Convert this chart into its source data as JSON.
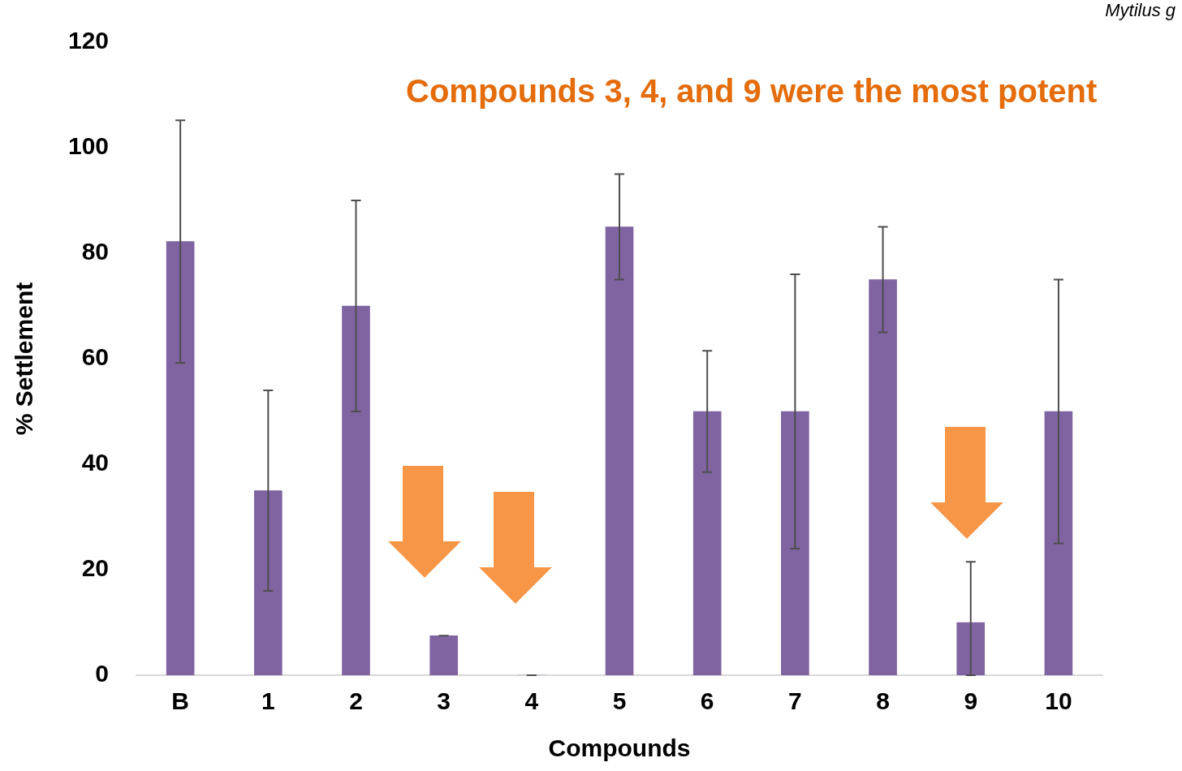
{
  "chart_data": {
    "type": "bar",
    "title": "Mytilus g",
    "annotations": [
      "Compounds 3, 4, and 9 were the most potent"
    ],
    "xlabel": "Compounds",
    "ylabel": "% Settlement",
    "categories": [
      "B",
      "1",
      "2",
      "3",
      "4",
      "5",
      "6",
      "7",
      "8",
      "9",
      "10"
    ],
    "values": [
      82.2,
      35,
      70,
      7.5,
      0,
      85,
      50,
      50,
      75,
      10,
      50
    ],
    "errors": [
      23,
      19,
      20,
      0,
      0,
      10,
      11.5,
      26,
      10,
      [
        0,
        21.5
      ],
      25
    ],
    "color": "#8064a2",
    "ylim": [
      0,
      120
    ],
    "yticks": [
      0,
      20,
      40,
      60,
      80,
      100,
      120
    ],
    "grid": false,
    "legend": false
  }
}
